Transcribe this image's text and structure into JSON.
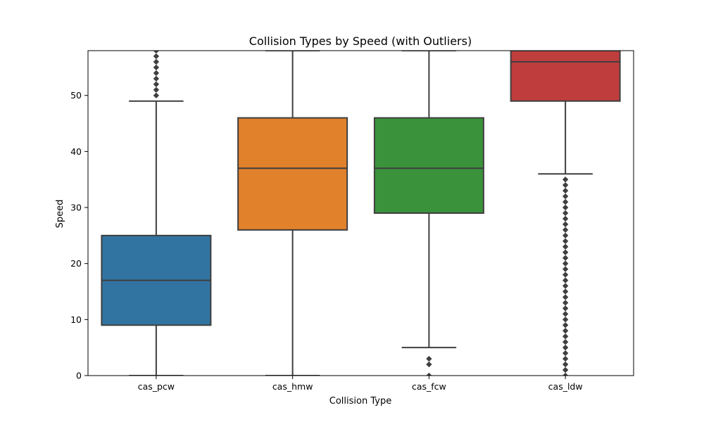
{
  "chart_data": {
    "type": "box",
    "title": "Collision Types by Speed (with Outliers)",
    "xlabel": "Collision Type",
    "ylabel": "Speed",
    "ylim": [
      0,
      58
    ],
    "yticks": [
      0,
      10,
      20,
      30,
      40,
      50
    ],
    "categories": [
      "cas_pcw",
      "cas_hmw",
      "cas_fcw",
      "cas_ldw"
    ],
    "colors": [
      "#3274a1",
      "#e1812c",
      "#3a923a",
      "#c03d3e"
    ],
    "boxes": [
      {
        "category": "cas_pcw",
        "whisker_low": 0,
        "q1": 9,
        "median": 17,
        "q3": 25,
        "whisker_high": 49,
        "outliers": [
          50,
          51,
          52,
          53,
          54,
          55,
          56,
          57,
          58
        ]
      },
      {
        "category": "cas_hmw",
        "whisker_low": 0,
        "q1": 26,
        "median": 37,
        "q3": 46,
        "whisker_high": 58,
        "outliers": []
      },
      {
        "category": "cas_fcw",
        "whisker_low": 5,
        "q1": 29,
        "median": 37,
        "q3": 46,
        "whisker_high": 58,
        "outliers": [
          0,
          2,
          3
        ]
      },
      {
        "category": "cas_ldw",
        "whisker_low": 36,
        "q1": 49,
        "median": 56,
        "q3": 58,
        "whisker_high": 58,
        "outliers": [
          0,
          1,
          2,
          3,
          4,
          5,
          6,
          7,
          8,
          9,
          10,
          11,
          12,
          13,
          14,
          15,
          16,
          17,
          18,
          19,
          20,
          21,
          22,
          23,
          24,
          25,
          26,
          27,
          28,
          29,
          30,
          31,
          32,
          33,
          34,
          35
        ]
      }
    ],
    "grid": false,
    "legend": "none"
  }
}
